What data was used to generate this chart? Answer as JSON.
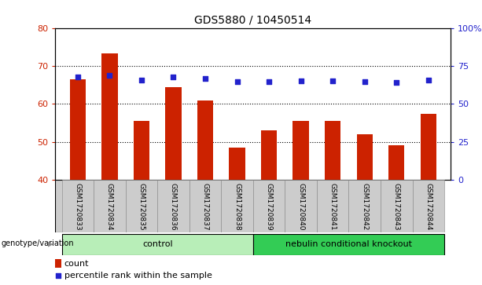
{
  "title": "GDS5880 / 10450514",
  "samples": [
    "GSM1720833",
    "GSM1720834",
    "GSM1720835",
    "GSM1720836",
    "GSM1720837",
    "GSM1720838",
    "GSM1720839",
    "GSM1720840",
    "GSM1720841",
    "GSM1720842",
    "GSM1720843",
    "GSM1720844"
  ],
  "counts": [
    66.5,
    73.5,
    55.5,
    64.5,
    61.0,
    48.5,
    53.0,
    55.5,
    55.5,
    52.0,
    49.0,
    57.5
  ],
  "percentiles": [
    68,
    69,
    66,
    68,
    67,
    65,
    65,
    65.5,
    65.5,
    65,
    64.5,
    66
  ],
  "ylim_left": [
    40,
    80
  ],
  "ylim_right": [
    0,
    100
  ],
  "yticks_left": [
    40,
    50,
    60,
    70,
    80
  ],
  "yticks_right": [
    0,
    25,
    50,
    75,
    100
  ],
  "ytick_labels_right": [
    "0",
    "25",
    "50",
    "75",
    "100%"
  ],
  "bar_color": "#cc2200",
  "dot_color": "#2222cc",
  "bar_bottom": 40,
  "groups": [
    {
      "label": "control",
      "start": 0,
      "end": 6,
      "color": "#b8eeb8"
    },
    {
      "label": "nebulin conditional knockout",
      "start": 6,
      "end": 12,
      "color": "#33cc55"
    }
  ],
  "legend_count_label": "count",
  "legend_percentile_label": "percentile rank within the sample",
  "label_area_color": "#cccccc",
  "n_samples": 12,
  "control_group_size": 6
}
